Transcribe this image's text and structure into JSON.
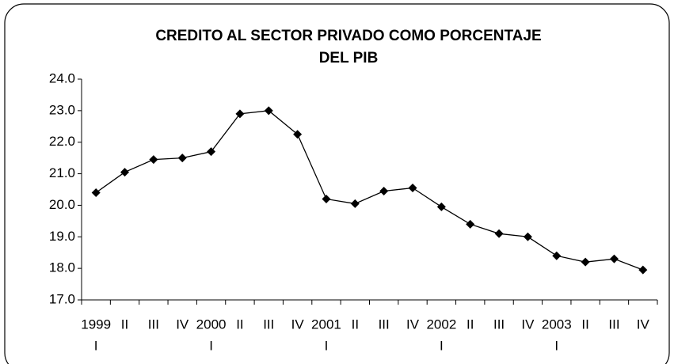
{
  "chart_data": {
    "type": "line",
    "title": [
      "CREDITO AL SECTOR PRIVADO COMO PORCENTAJE",
      "DEL PIB"
    ],
    "categories": [
      [
        "1999",
        "I"
      ],
      [
        "II"
      ],
      [
        "III"
      ],
      [
        "IV"
      ],
      [
        "2000",
        "I"
      ],
      [
        "II"
      ],
      [
        "III"
      ],
      [
        "IV"
      ],
      [
        "2001",
        "I"
      ],
      [
        "II"
      ],
      [
        "III"
      ],
      [
        "IV"
      ],
      [
        "2002",
        "I"
      ],
      [
        "II"
      ],
      [
        "III"
      ],
      [
        "IV"
      ],
      [
        "2003",
        "I"
      ],
      [
        "II"
      ],
      [
        "III"
      ],
      [
        "IV"
      ]
    ],
    "series": [
      {
        "color": "#000000",
        "values": [
          20.4,
          21.05,
          21.45,
          21.5,
          21.7,
          22.9,
          23.0,
          22.25,
          20.2,
          20.05,
          20.45,
          20.55,
          19.95,
          19.4,
          19.1,
          19.0,
          18.4,
          18.2,
          18.3,
          17.95
        ]
      }
    ],
    "ylim": [
      17,
      24
    ],
    "yticks": [
      {
        "value": 17,
        "label": "17.0"
      },
      {
        "value": 18,
        "label": "18.0"
      },
      {
        "value": 19,
        "label": "19.0"
      },
      {
        "value": 20,
        "label": "20.0"
      },
      {
        "value": 21,
        "label": "21.0"
      },
      {
        "value": 22,
        "label": "22.0"
      },
      {
        "value": 23,
        "label": "23.0"
      },
      {
        "value": 24,
        "label": "24.0"
      }
    ],
    "grid": false
  }
}
